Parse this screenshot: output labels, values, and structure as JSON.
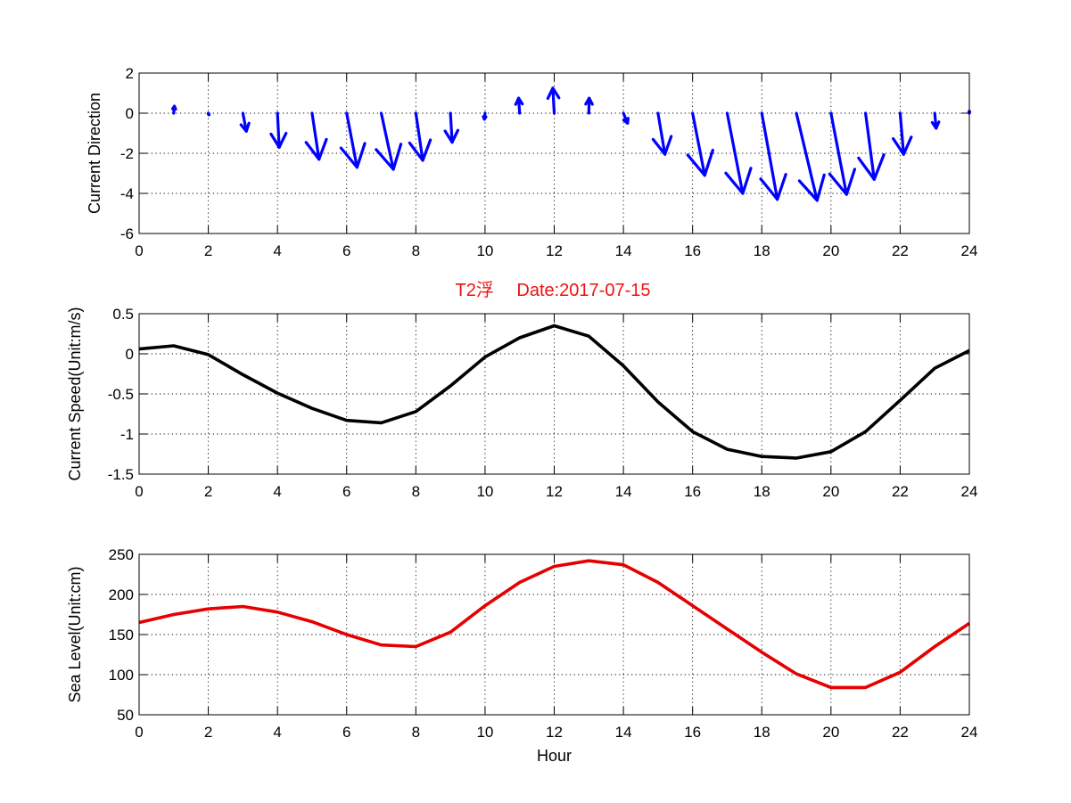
{
  "title": "T2浮　 Date:2017-07-15",
  "colors": {
    "direction": "#0000ff",
    "speed": "#000000",
    "sea_level": "#e60000",
    "title": "#ee1111"
  },
  "chart_data": [
    {
      "type": "quiver",
      "ylabel": "Current Direction",
      "xlabel": "",
      "xlim": [
        0,
        24
      ],
      "ylim": [
        -6,
        2
      ],
      "xticks": [
        0,
        2,
        4,
        6,
        8,
        10,
        12,
        14,
        16,
        18,
        20,
        22,
        24
      ],
      "yticks": [
        -6,
        -4,
        -2,
        0,
        2
      ],
      "grid": true,
      "x": [
        1,
        2,
        3,
        4,
        5,
        6,
        7,
        8,
        9,
        10,
        11,
        12,
        13,
        14,
        15,
        16,
        17,
        18,
        19,
        20,
        21,
        22,
        23,
        24
      ],
      "u": [
        0.02,
        0.02,
        0.1,
        0.05,
        0.2,
        0.3,
        0.35,
        0.2,
        0.05,
        -0.02,
        -0.03,
        -0.04,
        0.01,
        0.12,
        0.2,
        0.35,
        0.45,
        0.45,
        0.6,
        0.45,
        0.25,
        0.1,
        0.04,
        0.0
      ],
      "v": [
        0.35,
        -0.08,
        -0.9,
        -1.7,
        -2.3,
        -2.7,
        -2.8,
        -2.35,
        -1.45,
        -0.3,
        0.75,
        1.25,
        0.75,
        -0.5,
        -2.05,
        -3.1,
        -4.0,
        -4.3,
        -4.35,
        -4.05,
        -3.3,
        -2.05,
        -0.75,
        0.1
      ]
    },
    {
      "type": "line",
      "ylabel": "Current Speed(Unit:m/s)",
      "xlabel": "",
      "xlim": [
        0,
        24
      ],
      "ylim": [
        -1.5,
        0.5
      ],
      "xticks": [
        0,
        2,
        4,
        6,
        8,
        10,
        12,
        14,
        16,
        18,
        20,
        22,
        24
      ],
      "yticks": [
        -1.5,
        -1,
        -0.5,
        0,
        0.5
      ],
      "grid": true,
      "x": [
        0,
        1,
        2,
        3,
        4,
        5,
        6,
        7,
        8,
        9,
        10,
        11,
        12,
        13,
        14,
        15,
        16,
        17,
        18,
        19,
        20,
        21,
        22,
        23,
        24
      ],
      "y": [
        0.06,
        0.1,
        -0.01,
        -0.26,
        -0.49,
        -0.68,
        -0.83,
        -0.86,
        -0.72,
        -0.4,
        -0.04,
        0.2,
        0.35,
        0.22,
        -0.15,
        -0.6,
        -0.97,
        -1.19,
        -1.28,
        -1.3,
        -1.22,
        -0.97,
        -0.58,
        -0.18,
        0.04
      ]
    },
    {
      "type": "line",
      "ylabel": "Sea Level(Unit:cm)",
      "xlabel": "Hour",
      "xlim": [
        0,
        24
      ],
      "ylim": [
        50,
        250
      ],
      "xticks": [
        0,
        2,
        4,
        6,
        8,
        10,
        12,
        14,
        16,
        18,
        20,
        22,
        24
      ],
      "yticks": [
        50,
        100,
        150,
        200,
        250
      ],
      "grid": true,
      "x": [
        0,
        1,
        2,
        3,
        4,
        5,
        6,
        7,
        8,
        9,
        10,
        11,
        12,
        13,
        14,
        15,
        16,
        17,
        18,
        19,
        20,
        21,
        22,
        23,
        24
      ],
      "y": [
        165,
        175,
        182,
        185,
        178,
        166,
        150,
        137,
        135,
        153,
        186,
        215,
        235,
        242,
        237,
        215,
        186,
        157,
        128,
        101,
        84,
        84,
        103,
        135,
        164
      ]
    }
  ]
}
